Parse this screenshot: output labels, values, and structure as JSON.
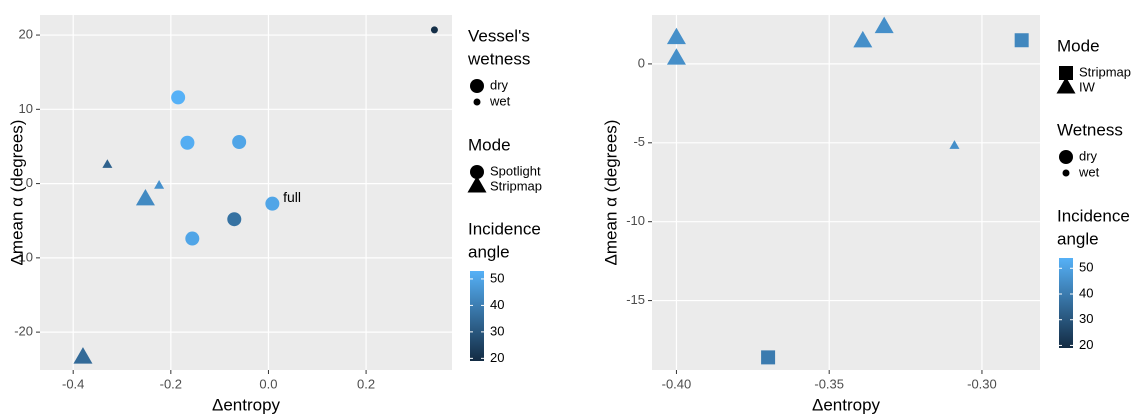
{
  "chart_data": [
    {
      "type": "scatter",
      "xlabel": "Δentropy",
      "ylabel": "Δmean α (degrees)",
      "x": [
        0.34,
        -0.185,
        -0.166,
        -0.06,
        -0.33,
        -0.224,
        -0.252,
        0.008,
        -0.07,
        -0.156,
        -0.38
      ],
      "values": [
        20.7,
        11.6,
        5.5,
        5.6,
        2.5,
        -0.3,
        -2.2,
        -2.7,
        -4.8,
        -7.4,
        -23.5
      ],
      "mode": [
        "Spotlight",
        "Spotlight",
        "Spotlight",
        "Spotlight",
        "Stripmap",
        "Stripmap",
        "Stripmap",
        "Spotlight",
        "Spotlight",
        "Spotlight",
        "Stripmap"
      ],
      "wetness": [
        "wet",
        "dry",
        "dry",
        "dry",
        "wet",
        "wet",
        "dry",
        "dry",
        "dry",
        "dry",
        "dry"
      ],
      "incidence": [
        20,
        53,
        52,
        50,
        33,
        45,
        43,
        50,
        37,
        50,
        35
      ],
      "xlim": [
        -0.468,
        0.376
      ],
      "xticks": [
        -0.4,
        -0.2,
        {
          "value": 0,
          "label": "0.0"
        },
        0.2
      ],
      "ylim": [
        -25.1,
        22.7
      ],
      "yticks": [
        -20,
        -10,
        0,
        10,
        20
      ],
      "grid": true,
      "annotations": [
        {
          "text": "full",
          "x": 0.03,
          "y": -2.0,
          "color": "#56a8ee"
        }
      ],
      "legends": [
        {
          "kind": "size",
          "title": [
            "Vessel's",
            "wetness"
          ],
          "labels": [
            "dry",
            "wet"
          ]
        },
        {
          "kind": "shape",
          "title": [
            "Mode"
          ],
          "labels": [
            "Spotlight",
            "Stripmap"
          ],
          "shapes": [
            "circle",
            "triangle"
          ]
        },
        {
          "kind": "color",
          "title": [
            "Incidence",
            "angle"
          ],
          "lim": [
            19,
            53
          ],
          "ticks": [
            20,
            30,
            40,
            50
          ],
          "low": "#132B43",
          "high": "#56B1F7"
        }
      ]
    },
    {
      "type": "scatter",
      "xlabel": "Δentropy",
      "ylabel": "Δmean α (degrees)",
      "x": [
        -0.4,
        -0.4,
        -0.339,
        -0.332,
        -0.287,
        -0.309,
        -0.37
      ],
      "values": [
        1.6,
        0.3,
        1.4,
        2.3,
        1.5,
        -5.2,
        -18.6
      ],
      "mode": [
        "IW",
        "IW",
        "IW",
        "IW",
        "Stripmap",
        "IW",
        "Stripmap"
      ],
      "wetness": [
        "dry",
        "dry",
        "dry",
        "dry",
        "dry",
        "wet",
        "dry"
      ],
      "incidence": [
        45,
        45,
        45,
        45,
        43,
        45,
        40
      ],
      "xlim": [
        -0.408,
        -0.281
      ],
      "xticks": [
        {
          "value": -0.4,
          "label": "-0.40"
        },
        -0.35,
        {
          "value": -0.3,
          "label": "-0.30"
        }
      ],
      "ylim": [
        -19.4,
        3.1
      ],
      "yticks": [
        -15,
        -10,
        -5,
        0
      ],
      "grid": true,
      "legends": [
        {
          "kind": "shape",
          "title": [
            "Mode"
          ],
          "labels": [
            "Stripmap",
            "IW"
          ],
          "shapes": [
            "square",
            "triangle"
          ]
        },
        {
          "kind": "size",
          "title": [
            "Wetness"
          ],
          "labels": [
            "dry",
            "wet"
          ]
        },
        {
          "kind": "color",
          "title": [
            "Incidence",
            "angle"
          ],
          "lim": [
            19,
            54
          ],
          "ticks": [
            20,
            30,
            40,
            50
          ],
          "low": "#132B43",
          "high": "#56B1F7"
        }
      ]
    }
  ]
}
